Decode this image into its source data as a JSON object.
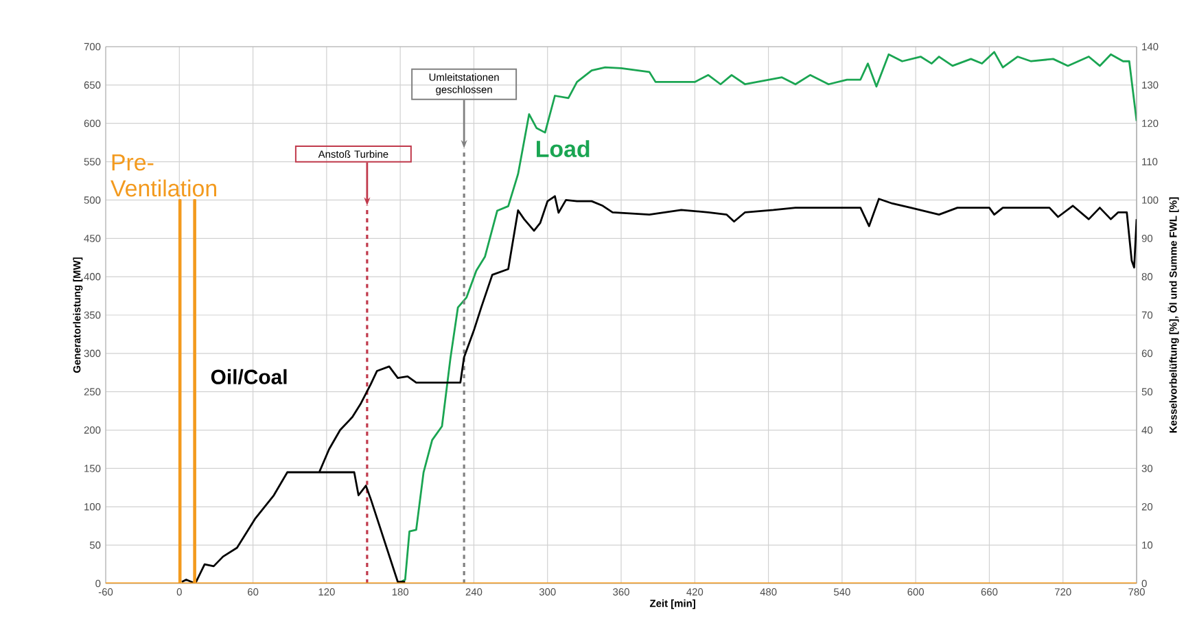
{
  "chart_data": {
    "type": "line",
    "xlabel": "Zeit [min]",
    "ylabel": "Generatorleistung [MW]",
    "y2label": "Kesselvorbelüftung [%], Öl und Summe FWL [%]",
    "xlim": [
      -60,
      780
    ],
    "xticks": [
      -60,
      0,
      60,
      120,
      180,
      240,
      300,
      360,
      420,
      480,
      540,
      600,
      660,
      720,
      780
    ],
    "ylim": [
      0,
      700
    ],
    "yticks": [
      0,
      50,
      100,
      150,
      200,
      250,
      300,
      350,
      400,
      450,
      500,
      550,
      600,
      650,
      700
    ],
    "y2lim": [
      0,
      140
    ],
    "y2ticks": [
      0,
      10,
      20,
      30,
      40,
      50,
      60,
      70,
      80,
      90,
      100,
      110,
      120,
      130,
      140
    ],
    "grid": true,
    "marker": "none",
    "ref_lines": [
      {
        "axis": "x",
        "value": 153,
        "label": "Anstoß Turbine",
        "color": "#c0394b",
        "line_style": "dashed"
      },
      {
        "axis": "x",
        "value": 232,
        "label": "Umleitstationen geschlossen",
        "color": "#808080",
        "line_style": "dashed"
      }
    ],
    "series": [
      {
        "name": "Load",
        "color": "#1aa552",
        "x": [
          178,
          184,
          187.5,
          193,
          199,
          206,
          214,
          221,
          227,
          234,
          242,
          249,
          259,
          268,
          276,
          285,
          291,
          298,
          306,
          317,
          324,
          336,
          347,
          360,
          383,
          388,
          420,
          431,
          441,
          450,
          461,
          491,
          502,
          514,
          529,
          544,
          555,
          561,
          568,
          578,
          589,
          604,
          613,
          619,
          630,
          645,
          654,
          664,
          671,
          683,
          694,
          712,
          724,
          741,
          750,
          759,
          769,
          774,
          780
        ],
        "values": [
          0,
          5,
          68,
          70,
          145,
          187,
          205,
          295,
          360,
          373,
          408,
          426,
          486,
          492,
          534,
          612,
          594,
          588,
          636,
          633,
          654,
          669,
          673,
          672,
          667,
          654,
          654,
          663,
          651,
          663,
          651,
          660,
          651,
          663,
          651,
          657,
          657,
          678,
          648,
          690,
          681,
          687,
          678,
          687,
          675,
          684,
          678,
          693,
          673,
          687,
          681,
          684,
          675,
          687,
          675,
          690,
          681,
          681,
          603
        ]
      },
      {
        "name": "Oil/Coal",
        "color": "#000000",
        "axis": "y2",
        "x": [
          2,
          5.6,
          13,
          20.6,
          28,
          35.6,
          47,
          62,
          77,
          88,
          114,
          142.5,
          146,
          152,
          156,
          178,
          184,
          null,
          114,
          122,
          131,
          141,
          148,
          156,
          161,
          171,
          178,
          186,
          193,
          229,
          232,
          240,
          246,
          255,
          268,
          276,
          281,
          289,
          294,
          300,
          306,
          309,
          315,
          324,
          336,
          345,
          353,
          383,
          409,
          431,
          446,
          452,
          461,
          484,
          502,
          529,
          555,
          562,
          570,
          581,
          596,
          619,
          634,
          660,
          664,
          671,
          709,
          716,
          728,
          741,
          750,
          759,
          765,
          772,
          776,
          778,
          780
        ],
        "values": [
          0.4,
          1,
          0,
          5,
          4.5,
          7,
          9.3,
          17,
          23,
          29,
          29,
          29,
          23,
          25.5,
          22,
          0.4,
          0.4,
          null,
          29,
          35,
          40,
          43.4,
          47,
          52,
          55.4,
          56.6,
          53.6,
          54,
          52.4,
          52.4,
          59,
          66,
          72,
          80.5,
          82,
          97.3,
          95,
          92,
          94,
          99.7,
          101,
          96.7,
          100,
          99.7,
          99.7,
          98.5,
          96.8,
          96.2,
          97.4,
          96.8,
          96.2,
          94.4,
          96.8,
          97.4,
          98,
          98,
          98,
          93.2,
          100.3,
          99.1,
          98,
          96.2,
          98,
          98,
          96.2,
          98,
          98,
          95.6,
          98.5,
          95,
          98,
          95,
          96.8,
          96.8,
          84.2,
          82.4,
          95
        ]
      },
      {
        "name": "Pre-Ventilation",
        "color": "#f39a1e",
        "axis": "y2",
        "x": [
          -60,
          0,
          0,
          1,
          1,
          12,
          12,
          13,
          13,
          780
        ],
        "values": [
          0,
          0,
          100,
          100,
          0,
          0,
          100,
          100,
          0,
          0
        ]
      }
    ]
  }
}
